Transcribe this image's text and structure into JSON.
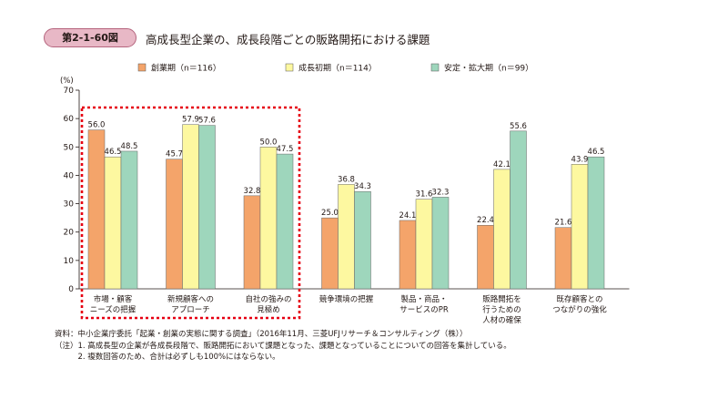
{
  "figure": {
    "number": "第2-1-60図",
    "title": "高成長型企業の、成長段階ごとの販路開拓における課題"
  },
  "colors": {
    "badge_fill": "#e8b8c6",
    "series": [
      "#f4a46a",
      "#fdf8a0",
      "#9ed6bc"
    ],
    "highlight_box": "#e60012"
  },
  "chart_data": {
    "type": "bar",
    "ylabel": "(%)",
    "ylim": [
      0,
      70
    ],
    "yticks": [
      0,
      10,
      20,
      30,
      40,
      50,
      60,
      70
    ],
    "grid": false,
    "legend_position": "top",
    "categories": [
      [
        "市場・顧客",
        "ニーズの把握"
      ],
      [
        "新規顧客への",
        "アプローチ"
      ],
      [
        "自社の強みの",
        "見極め"
      ],
      [
        "競争環境の把握"
      ],
      [
        "製品・商品・",
        "サービスのPR"
      ],
      [
        "販路開拓を",
        "行うための",
        "人材の確保"
      ],
      [
        "既存顧客との",
        "つながりの強化"
      ]
    ],
    "series": [
      {
        "name": "創業期（n＝116）",
        "values": [
          56.0,
          45.7,
          32.8,
          25.0,
          24.1,
          22.4,
          21.6
        ]
      },
      {
        "name": "成長初期（n＝114）",
        "values": [
          46.5,
          57.9,
          50.0,
          36.8,
          31.6,
          42.1,
          43.9
        ]
      },
      {
        "name": "安定・拡大期（n＝99）",
        "values": [
          48.5,
          57.6,
          47.5,
          34.3,
          32.3,
          55.6,
          46.5
        ]
      }
    ],
    "highlighted_categories": [
      0,
      1,
      2
    ]
  },
  "notes": [
    "資料：中小企業庁委託「起業・創業の実態に関する調査」（2016年11月、三菱UFJリサーチ＆コンサルティング（株））",
    "（注）1. 高成長型の企業が各成長段階で、販路開拓において課題となった、課題となっていることについての回答を集計している。",
    "　　　2. 複数回答のため、合計は必ずしも100%にはならない。"
  ]
}
